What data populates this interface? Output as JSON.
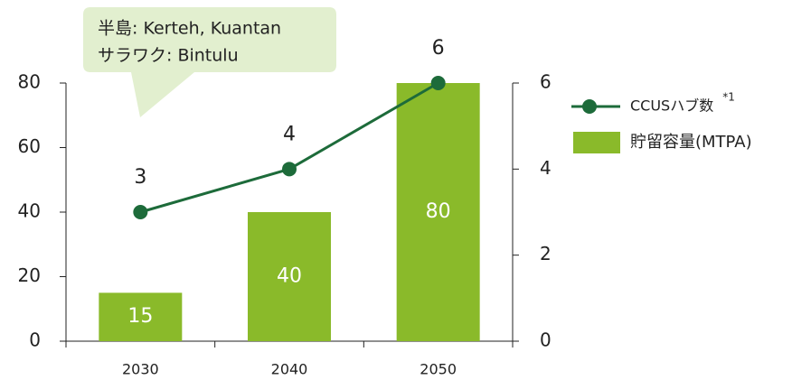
{
  "chart_data": {
    "type": "combo",
    "annotation": [
      "半島: Kerteh, Kuantan",
      "サラワク: Bintulu"
    ],
    "categories": [
      "2030",
      "2040",
      "2050"
    ],
    "series": [
      {
        "name": "貯留容量(MTPA)",
        "type": "bar",
        "color": "#8aba2a",
        "values": [
          15,
          40,
          80
        ]
      },
      {
        "name": "CCUSハブ数",
        "type": "line",
        "axis": "y2",
        "color": "#1d6b3a",
        "values": [
          3,
          4,
          6
        ],
        "note": "*1"
      }
    ],
    "ylim": [
      0,
      80
    ],
    "yticks": [
      0,
      20,
      40,
      60,
      80
    ],
    "y2lim": [
      0,
      6
    ],
    "y2ticks": [
      0,
      2,
      4,
      6
    ]
  }
}
